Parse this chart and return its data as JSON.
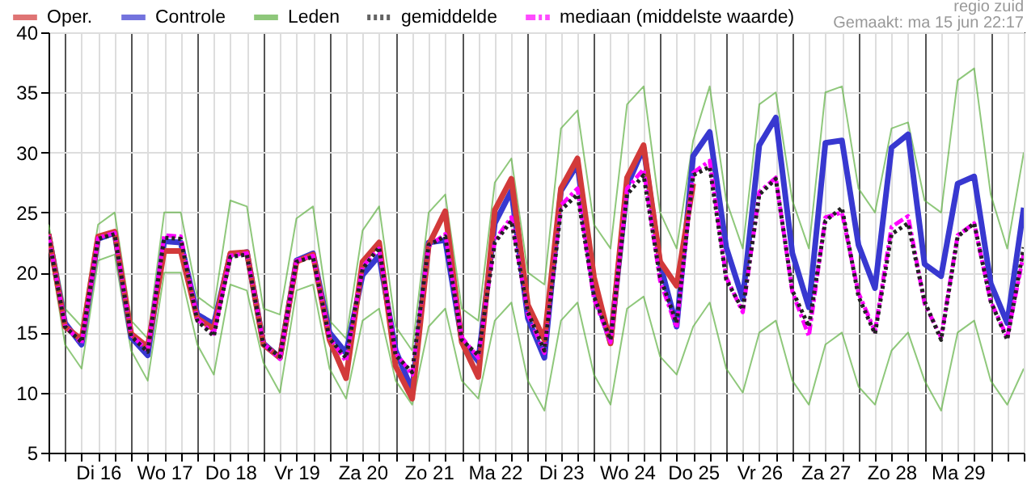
{
  "chart_data": {
    "type": "line",
    "annotations": [
      "regio zuid",
      "Gemaakt: ma 15 jun 22:17"
    ],
    "x": [
      "--06-15T18:00",
      "--06-16T00:00",
      "--06-16T06:00",
      "--06-16T12:00",
      "--06-16T18:00",
      "--06-17T00:00",
      "--06-17T06:00",
      "--06-17T12:00",
      "--06-17T18:00",
      "--06-18T00:00",
      "--06-18T06:00",
      "--06-18T12:00",
      "--06-18T18:00",
      "--06-19T00:00",
      "--06-19T06:00",
      "--06-19T12:00",
      "--06-19T18:00",
      "--06-20T00:00",
      "--06-20T06:00",
      "--06-20T12:00",
      "--06-20T18:00",
      "--06-21T00:00",
      "--06-21T06:00",
      "--06-21T12:00",
      "--06-21T18:00",
      "--06-22T00:00",
      "--06-22T06:00",
      "--06-22T12:00",
      "--06-22T18:00",
      "--06-23T00:00",
      "--06-23T06:00",
      "--06-23T12:00",
      "--06-23T18:00",
      "--06-24T00:00",
      "--06-24T06:00",
      "--06-24T12:00",
      "--06-24T18:00",
      "--06-25T00:00",
      "--06-25T06:00",
      "--06-25T12:00",
      "--06-25T18:00",
      "--06-26T00:00",
      "--06-26T06:00",
      "--06-26T12:00",
      "--06-26T18:00",
      "--06-27T00:00",
      "--06-27T06:00",
      "--06-27T12:00",
      "--06-27T18:00",
      "--06-28T00:00",
      "--06-28T06:00",
      "--06-28T12:00",
      "--06-28T18:00",
      "--06-29T00:00",
      "--06-29T06:00",
      "--06-29T12:00",
      "--06-29T18:00",
      "--06-30T00:00",
      "--06-30T06:00",
      "--06-30T12:00"
    ],
    "series": [
      {
        "name": "Oper.",
        "color": "#d23a3a",
        "values": [
          23.2,
          15.5,
          14.4,
          23.0,
          23.4,
          14.9,
          13.8,
          21.8,
          21.8,
          16.2,
          15.3,
          21.6,
          21.7,
          14.0,
          12.9,
          20.9,
          21.5,
          14.4,
          11.2,
          20.9,
          22.5,
          12.2,
          9.5,
          22.3,
          25.1,
          14.2,
          11.3,
          25.2,
          27.8,
          17.3,
          14.4,
          27.0,
          29.5,
          19.6,
          14.1,
          27.9,
          30.6,
          20.9,
          18.9,
          27.4,
          null,
          null,
          null,
          null,
          null,
          null,
          null,
          null,
          null,
          null,
          null,
          null,
          null,
          null,
          null,
          null,
          null,
          null,
          null,
          null
        ]
      },
      {
        "name": "Controle",
        "color": "#3838d0",
        "values": [
          23.2,
          15.8,
          14.0,
          22.8,
          23.3,
          14.6,
          13.1,
          22.6,
          22.5,
          16.5,
          15.7,
          21.5,
          21.7,
          14.1,
          12.9,
          21.0,
          21.6,
          15.0,
          13.3,
          19.8,
          21.4,
          13.5,
          10.2,
          22.5,
          22.7,
          14.4,
          12.6,
          24.1,
          26.8,
          16.2,
          12.9,
          26.8,
          29.0,
          18.5,
          14.2,
          27.2,
          30.4,
          20.7,
          15.5,
          29.7,
          31.7,
          22.1,
          17.8,
          30.6,
          32.9,
          21.6,
          17.1,
          30.8,
          31.0,
          22.3,
          18.7,
          30.4,
          31.5,
          20.7,
          19.7,
          27.4,
          28.0,
          19.1,
          15.8,
          25.4
        ]
      },
      {
        "name": "Leden",
        "color": "#5fb043",
        "values": [
          24,
          17,
          15.5,
          24,
          25,
          16,
          14.5,
          25,
          25,
          18,
          17,
          26,
          25.5,
          17,
          16.5,
          24.5,
          25.5,
          16,
          14.5,
          23.5,
          25.5,
          15.5,
          13.5,
          25,
          26.5,
          17,
          16,
          27.5,
          29.5,
          20,
          19,
          32,
          33.5,
          24,
          22,
          34,
          35.5,
          25,
          22,
          31,
          35.5,
          26,
          22,
          34,
          35,
          26,
          22,
          35,
          35.5,
          27,
          25,
          32,
          32.5,
          26,
          25,
          36,
          37,
          26.5,
          22,
          30
        ]
      },
      {
        "color": "#5fb043",
        "values": [
          22.5,
          14,
          12,
          21,
          21.5,
          13.5,
          11,
          20,
          20,
          14,
          11.5,
          19,
          18.5,
          12.5,
          10,
          18.5,
          19,
          12,
          9.5,
          16,
          17,
          11,
          9,
          15.5,
          17,
          11,
          9.5,
          16,
          17.5,
          11,
          8.5,
          16,
          17.5,
          11.5,
          9,
          17,
          18,
          13,
          11.5,
          15.5,
          17.5,
          12,
          10,
          15,
          16,
          11,
          9,
          14,
          15,
          10.5,
          9,
          13.5,
          15,
          11,
          8.5,
          15,
          16,
          11,
          9,
          12
        ]
      },
      {
        "name": "gemiddelde",
        "color": "#222222",
        "line_style": "dotted",
        "values": [
          23.0,
          15.5,
          14.2,
          22.8,
          23.2,
          14.7,
          13.4,
          22.9,
          22.8,
          16.0,
          14.7,
          21.3,
          21.5,
          14.0,
          13.0,
          20.9,
          21.3,
          14.5,
          12.9,
          20.3,
          22.1,
          13.1,
          11.7,
          22.3,
          23.0,
          14.4,
          13.1,
          22.5,
          24.3,
          16.7,
          13.5,
          25.2,
          26.5,
          18.0,
          14.4,
          26.5,
          28.1,
          19.6,
          15.8,
          28.1,
          28.8,
          19.4,
          16.9,
          26.5,
          27.8,
          18.5,
          15.5,
          24.3,
          25.4,
          18.0,
          14.9,
          23.2,
          24.1,
          17.6,
          14.4,
          23.0,
          24.1,
          17.6,
          14.4,
          22.1
        ]
      },
      {
        "name": "mediaan (middelste waarde)",
        "color": "#ff00ff",
        "line_style": "dashed",
        "values": [
          23.1,
          15.6,
          14.1,
          22.9,
          23.3,
          14.8,
          13.5,
          23.1,
          23.0,
          16.1,
          14.9,
          21.4,
          21.6,
          14.1,
          12.8,
          21.0,
          21.4,
          14.6,
          12.6,
          20.5,
          22.0,
          13.3,
          11.5,
          22.2,
          23.2,
          14.6,
          12.9,
          22.7,
          24.6,
          16.5,
          13.3,
          25.6,
          27.0,
          17.8,
          14.2,
          27.0,
          28.6,
          19.3,
          15.4,
          28.3,
          29.3,
          19.6,
          16.7,
          26.7,
          27.9,
          18.4,
          14.7,
          24.6,
          25.0,
          18.3,
          15.1,
          23.8,
          24.7,
          17.4,
          14.6,
          23.1,
          24.1,
          17.6,
          14.6,
          21.6
        ]
      }
    ],
    "xlim": [
      "--06-15T18:00",
      "--06-30T12:00"
    ],
    "xticks": [
      {
        "value": "--06-15T18:00",
        "label": null
      },
      {
        "value": "--06-16T00:00",
        "label": null
      },
      {
        "value": "--06-16T06:00",
        "label": null
      },
      {
        "value": "--06-16T12:00",
        "label": "Di 16"
      },
      {
        "value": "--06-16T18:00",
        "label": null
      },
      {
        "value": "--06-17T00:00",
        "label": null
      },
      {
        "value": "--06-17T06:00",
        "label": null
      },
      {
        "value": "--06-17T12:00",
        "label": "Wo 17"
      },
      {
        "value": "--06-17T18:00",
        "label": null
      },
      {
        "value": "--06-18T00:00",
        "label": null
      },
      {
        "value": "--06-18T06:00",
        "label": null
      },
      {
        "value": "--06-18T12:00",
        "label": "Do 18"
      },
      {
        "value": "--06-18T18:00",
        "label": null
      },
      {
        "value": "--06-19T00:00",
        "label": null
      },
      {
        "value": "--06-19T06:00",
        "label": null
      },
      {
        "value": "--06-19T12:00",
        "label": "Vr 19"
      },
      {
        "value": "--06-19T18:00",
        "label": null
      },
      {
        "value": "--06-20T00:00",
        "label": null
      },
      {
        "value": "--06-20T06:00",
        "label": null
      },
      {
        "value": "--06-20T12:00",
        "label": "Za 20"
      },
      {
        "value": "--06-20T18:00",
        "label": null
      },
      {
        "value": "--06-21T00:00",
        "label": null
      },
      {
        "value": "--06-21T06:00",
        "label": null
      },
      {
        "value": "--06-21T12:00",
        "label": "Zo 21"
      },
      {
        "value": "--06-21T18:00",
        "label": null
      },
      {
        "value": "--06-22T00:00",
        "label": null
      },
      {
        "value": "--06-22T06:00",
        "label": null
      },
      {
        "value": "--06-22T12:00",
        "label": "Ma 22"
      },
      {
        "value": "--06-22T18:00",
        "label": null
      },
      {
        "value": "--06-23T00:00",
        "label": null
      },
      {
        "value": "--06-23T06:00",
        "label": null
      },
      {
        "value": "--06-23T12:00",
        "label": "Di 23"
      },
      {
        "value": "--06-23T18:00",
        "label": null
      },
      {
        "value": "--06-24T00:00",
        "label": null
      },
      {
        "value": "--06-24T06:00",
        "label": null
      },
      {
        "value": "--06-24T12:00",
        "label": "Wo 24"
      },
      {
        "value": "--06-24T18:00",
        "label": null
      },
      {
        "value": "--06-25T00:00",
        "label": null
      },
      {
        "value": "--06-25T06:00",
        "label": null
      },
      {
        "value": "--06-25T12:00",
        "label": "Do 25"
      },
      {
        "value": "--06-25T18:00",
        "label": null
      },
      {
        "value": "--06-26T00:00",
        "label": null
      },
      {
        "value": "--06-26T06:00",
        "label": null
      },
      {
        "value": "--06-26T12:00",
        "label": "Vr 26"
      },
      {
        "value": "--06-26T18:00",
        "label": null
      },
      {
        "value": "--06-27T00:00",
        "label": null
      },
      {
        "value": "--06-27T06:00",
        "label": null
      },
      {
        "value": "--06-27T12:00",
        "label": "Za 27"
      },
      {
        "value": "--06-27T18:00",
        "label": null
      },
      {
        "value": "--06-28T00:00",
        "label": null
      },
      {
        "value": "--06-28T06:00",
        "label": null
      },
      {
        "value": "--06-28T12:00",
        "label": "Zo 28"
      },
      {
        "value": "--06-28T18:00",
        "label": null
      },
      {
        "value": "--06-29T00:00",
        "label": null
      },
      {
        "value": "--06-29T06:00",
        "label": null
      },
      {
        "value": "--06-29T12:00",
        "label": "Ma 29"
      },
      {
        "value": "--06-29T18:00",
        "label": null
      },
      {
        "value": "--06-30T00:00",
        "label": null
      },
      {
        "value": "--06-30T06:00",
        "label": null
      },
      {
        "value": "--06-30T12:00",
        "label": null
      }
    ],
    "ylim": [
      5,
      40
    ],
    "yticks": [
      5,
      10,
      15,
      20,
      25,
      30,
      35,
      40
    ],
    "grid": true,
    "legend": "top"
  }
}
